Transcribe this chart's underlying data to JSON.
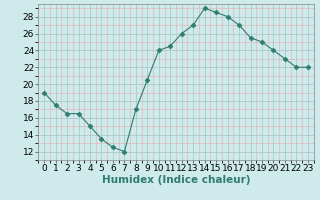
{
  "x": [
    0,
    1,
    2,
    3,
    4,
    5,
    6,
    7,
    8,
    9,
    10,
    11,
    12,
    13,
    14,
    15,
    16,
    17,
    18,
    19,
    20,
    21,
    22,
    23
  ],
  "y": [
    19,
    17.5,
    16.5,
    16.5,
    15,
    13.5,
    12.5,
    12,
    17,
    20.5,
    24,
    24.5,
    26,
    27,
    29,
    28.5,
    28,
    27,
    25.5,
    25,
    24,
    23,
    22,
    22
  ],
  "line_color": "#2e7d6e",
  "marker": "D",
  "marker_size": 2.5,
  "bg_color": "#ceeaea",
  "grid_major_color": "#adc8c8",
  "grid_minor_color": "#e0b8b8",
  "xlabel": "Humidex (Indice chaleur)",
  "xlim": [
    -0.5,
    23.5
  ],
  "ylim": [
    11,
    29.5
  ],
  "yticks": [
    12,
    14,
    16,
    18,
    20,
    22,
    24,
    26,
    28
  ],
  "xticks": [
    0,
    1,
    2,
    3,
    4,
    5,
    6,
    7,
    8,
    9,
    10,
    11,
    12,
    13,
    14,
    15,
    16,
    17,
    18,
    19,
    20,
    21,
    22,
    23
  ],
  "tick_label_fontsize": 6.5,
  "xlabel_fontsize": 7.5
}
